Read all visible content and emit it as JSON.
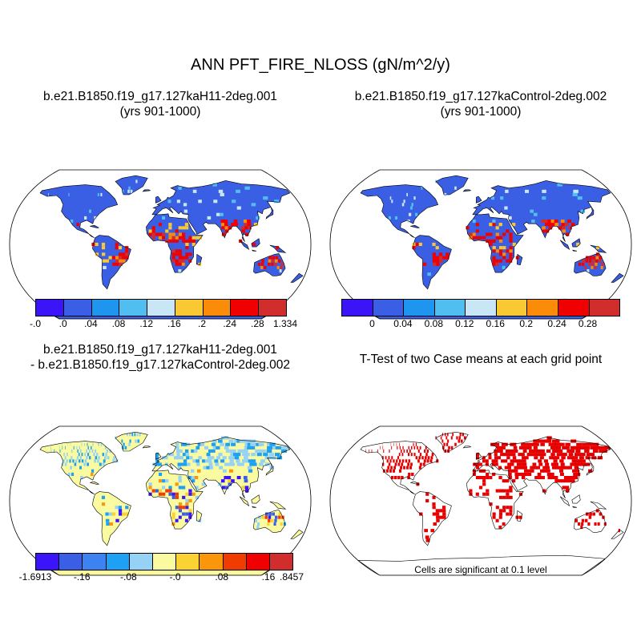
{
  "title": "ANN PFT_FIRE_NLOSS (gN/m^2/y)",
  "panels": [
    {
      "title_line1": "b.e21.B1850.f19_g17.127kaH11-2deg.001",
      "title_line2": "(yrs 901-1000)",
      "kind": "mean"
    },
    {
      "title_line1": "b.e21.B1850.f19_g17.127kaControl-2deg.002",
      "title_line2": "(yrs 901-1000)",
      "kind": "mean"
    },
    {
      "title_line1": "b.e21.B1850.f19_g17.127kaH11-2deg.001",
      "title_line2": "- b.e21.B1850.f19_g17.127kaControl-2deg.002",
      "kind": "difference"
    },
    {
      "title_line1": "T-Test of two Case means at each grid point",
      "title_line2": "",
      "kind": "significance"
    }
  ],
  "colorbars": {
    "mean_case1": {
      "colors": [
        "#3c14fa",
        "#3a5ee4",
        "#1e96f0",
        "#50bef0",
        "#c8e6f5",
        "#fac832",
        "#fa8c0a",
        "#f00000",
        "#d22d2d"
      ],
      "labels": [
        "-.0",
        ".0",
        ".04",
        ".08",
        ".12",
        ".16",
        ".2",
        ".24",
        ".28",
        "1.334"
      ]
    },
    "mean_case2": {
      "colors": [
        "#3c14fa",
        "#3a5ee4",
        "#1e96f0",
        "#50bef0",
        "#c8e6f5",
        "#fac832",
        "#fa8c0a",
        "#f00000",
        "#d22d2d"
      ],
      "labels": [
        "0",
        "0.04",
        "0.08",
        "0.12",
        "0.16",
        "0.2",
        "0.24",
        "0.28"
      ]
    },
    "difference": {
      "colors": [
        "#3c14fa",
        "#3a5ee4",
        "#3c82f0",
        "#1ea0f5",
        "#96d2f5",
        "#fafaa0",
        "#fad232",
        "#fa960a",
        "#f03c00",
        "#f00000",
        "#d22d2d"
      ],
      "labels": [
        "-1.6913",
        "-.16",
        "-.08",
        "-.0",
        ".08",
        ".16",
        ".8457"
      ]
    }
  },
  "map_colors": {
    "ocean": "#ffffff",
    "land_base_mean": "#3a5ee4",
    "land_base_difference": "#fafaa0",
    "significant": "#e60000",
    "coastline": "#000000"
  },
  "significance_note": "Cells are significant at 0.1 level"
}
